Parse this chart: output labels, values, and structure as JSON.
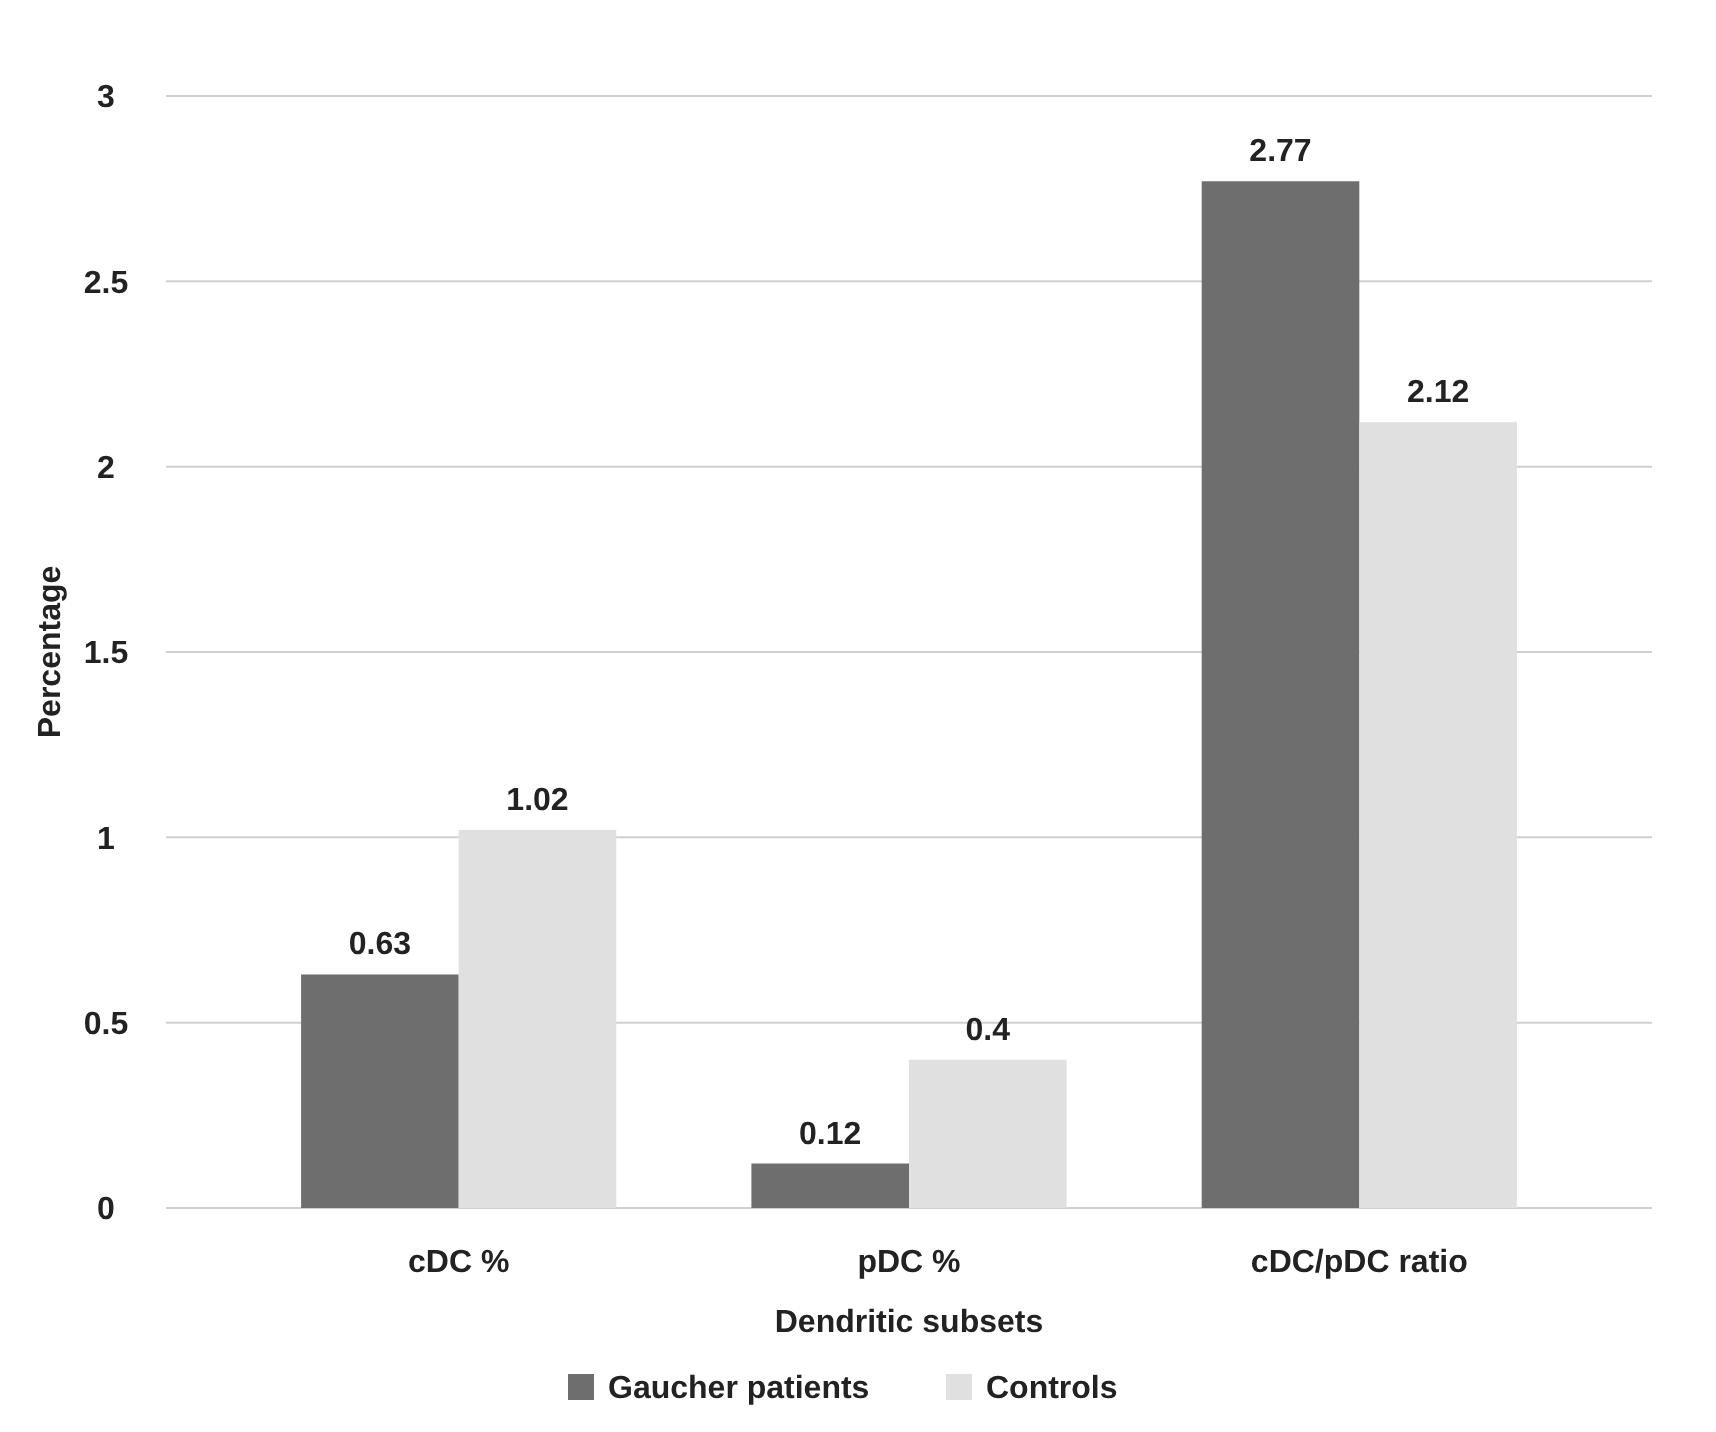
{
  "chart_data": {
    "type": "bar",
    "xlabel": "Dendritic subsets",
    "ylabel": "Percentage",
    "categories": [
      "cDC %",
      "pDC %",
      "cDC/pDC ratio"
    ],
    "series": [
      {
        "name": "Gaucher patients",
        "color": "#6e6e6e",
        "values": [
          0.63,
          0.12,
          2.77
        ]
      },
      {
        "name": "Controls",
        "color": "#e0e0e0",
        "values": [
          1.02,
          0.4,
          2.12
        ]
      }
    ],
    "ylim": [
      0,
      3
    ],
    "yticks": [
      0,
      0.5,
      1,
      1.5,
      2,
      2.5,
      3
    ],
    "grid": "y",
    "legend": "bottom",
    "data_labels": true
  }
}
